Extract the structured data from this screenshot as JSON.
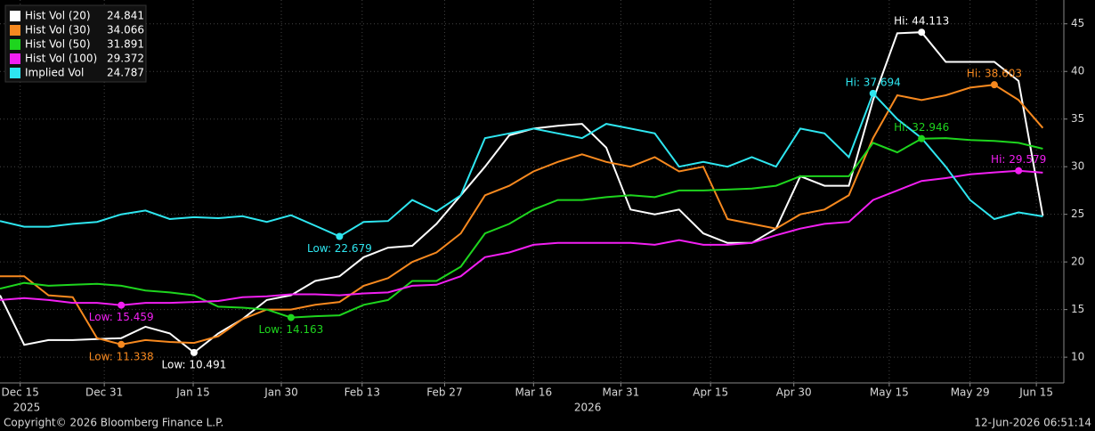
{
  "chart_data": {
    "type": "line",
    "x": [
      0,
      3,
      6,
      9,
      12,
      15,
      18,
      21,
      24,
      27,
      30,
      33,
      36,
      39,
      42,
      45,
      48,
      51,
      54,
      57,
      60,
      63,
      66,
      69,
      72,
      75,
      78,
      81,
      84,
      87,
      90,
      93,
      96,
      99,
      102,
      105,
      108,
      111,
      114,
      117,
      120,
      123,
      126,
      129
    ],
    "xlim": [
      0,
      131.6
    ],
    "xticks": [
      {
        "value": 2.5,
        "label": "Dec 15"
      },
      {
        "value": 12.9,
        "label": "Dec 31"
      },
      {
        "value": 23.9,
        "label": "Jan 15"
      },
      {
        "value": 34.8,
        "label": "Jan 30"
      },
      {
        "value": 44.8,
        "label": "Feb 13"
      },
      {
        "value": 55,
        "label": "Feb 27"
      },
      {
        "value": 66,
        "label": "Mar 16"
      },
      {
        "value": 76.8,
        "label": "Mar 31"
      },
      {
        "value": 87.9,
        "label": "Apr 15"
      },
      {
        "value": 98.2,
        "label": "Apr 30"
      },
      {
        "value": 110,
        "label": "May 15"
      },
      {
        "value": 120,
        "label": "May 29"
      },
      {
        "value": 128.2,
        "label": "Jun 15"
      }
    ],
    "year_labels": [
      {
        "value": 3.3,
        "label": "2025"
      },
      {
        "value": 72.7,
        "label": "2026"
      }
    ],
    "ylim": [
      7.3,
      47.5
    ],
    "yticks": [
      10,
      15,
      20,
      25,
      30,
      35,
      40,
      45
    ],
    "grid": true,
    "series": [
      {
        "name": "Hist Vol (20)",
        "color": "#ffffff",
        "values": [
          16.5,
          11.3,
          11.8,
          11.8,
          11.9,
          12,
          13.2,
          12.5,
          10.491,
          12.5,
          14,
          16,
          16.5,
          18,
          18.5,
          20.5,
          21.5,
          21.7,
          24,
          27,
          30,
          33.3,
          34,
          34.3,
          34.5,
          32,
          25.5,
          25,
          25.5,
          23,
          22,
          22,
          23.5,
          29,
          28,
          28,
          37,
          44,
          44.113,
          41,
          41,
          41,
          39,
          24.841
        ]
      },
      {
        "name": "Hist Vol (30)",
        "color": "#f7891f",
        "values": [
          18.5,
          18.5,
          16.5,
          16.3,
          12,
          11.338,
          11.8,
          11.6,
          11.5,
          12.2,
          14,
          15,
          15,
          15.5,
          15.8,
          17.5,
          18.3,
          20,
          21,
          23,
          27,
          28,
          29.5,
          30.5,
          31.3,
          30.5,
          30,
          31,
          29.5,
          30,
          24.5,
          24,
          23.5,
          25,
          25.5,
          27,
          33,
          37.5,
          37,
          37.5,
          38.3,
          38.603,
          37,
          34.066
        ]
      },
      {
        "name": "Hist Vol (50)",
        "color": "#1ed51e",
        "values": [
          17.2,
          17.8,
          17.5,
          17.6,
          17.7,
          17.5,
          17,
          16.8,
          16.5,
          15.3,
          15.2,
          15,
          14.163,
          14.3,
          14.4,
          15.5,
          16,
          18,
          18,
          19.5,
          23,
          24,
          25.5,
          26.5,
          26.5,
          26.8,
          27,
          26.8,
          27.5,
          27.5,
          27.6,
          27.7,
          28,
          29,
          29,
          29,
          32.5,
          31.5,
          32.946,
          33,
          32.8,
          32.7,
          32.5,
          31.891
        ]
      },
      {
        "name": "Hist Vol (100)",
        "color": "#f21ff2",
        "values": [
          16,
          16.2,
          16,
          15.7,
          15.7,
          15.459,
          15.7,
          15.7,
          15.8,
          15.9,
          16.3,
          16.4,
          16.6,
          16.6,
          16.5,
          16.7,
          16.8,
          17.5,
          17.6,
          18.5,
          20.5,
          21,
          21.8,
          22,
          22,
          22,
          22,
          21.8,
          22.3,
          21.8,
          21.8,
          22,
          22.8,
          23.5,
          24,
          24.2,
          26.5,
          27.5,
          28.5,
          28.8,
          29.2,
          29.4,
          29.579,
          29.372
        ]
      },
      {
        "name": "Implied Vol",
        "color": "#2ee6f0",
        "values": [
          24.3,
          23.7,
          23.7,
          24,
          24.2,
          25,
          25.4,
          24.5,
          24.7,
          24.6,
          24.8,
          24.2,
          24.9,
          23.8,
          22.679,
          24.2,
          24.3,
          26.5,
          25.3,
          27,
          33,
          33.5,
          34,
          33.5,
          33,
          34.5,
          34,
          33.5,
          30,
          30.5,
          30,
          31,
          30,
          34,
          33.5,
          31,
          37.694,
          35,
          33,
          30,
          26.5,
          24.5,
          25.2,
          24.787
        ]
      }
    ],
    "annotations": [
      {
        "label": "Hi: 44.113",
        "series": 0,
        "x": 114,
        "y": 44.113
      },
      {
        "label": "Low: 10.491",
        "series": 0,
        "x": 24,
        "y": 10.491
      },
      {
        "label": "Hi: 38.603",
        "series": 1,
        "x": 123,
        "y": 38.603
      },
      {
        "label": "Low: 11.338",
        "series": 1,
        "x": 15,
        "y": 11.338
      },
      {
        "label": "Hi: 32.946",
        "series": 2,
        "x": 114,
        "y": 32.946
      },
      {
        "label": "Low: 14.163",
        "series": 2,
        "x": 36,
        "y": 14.163
      },
      {
        "label": "Hi: 29.579",
        "series": 3,
        "x": 126,
        "y": 29.579
      },
      {
        "label": "Low: 15.459",
        "series": 3,
        "x": 15,
        "y": 15.459
      },
      {
        "label": "Hi: 37.694",
        "series": 4,
        "x": 108,
        "y": 37.694
      },
      {
        "label": "Low: 22.679",
        "series": 4,
        "x": 42,
        "y": 22.679
      }
    ],
    "source": "Copyright© 2026 Bloomberg Finance L.P.",
    "timestamp": "12-Jun-2026 06:51:14"
  }
}
